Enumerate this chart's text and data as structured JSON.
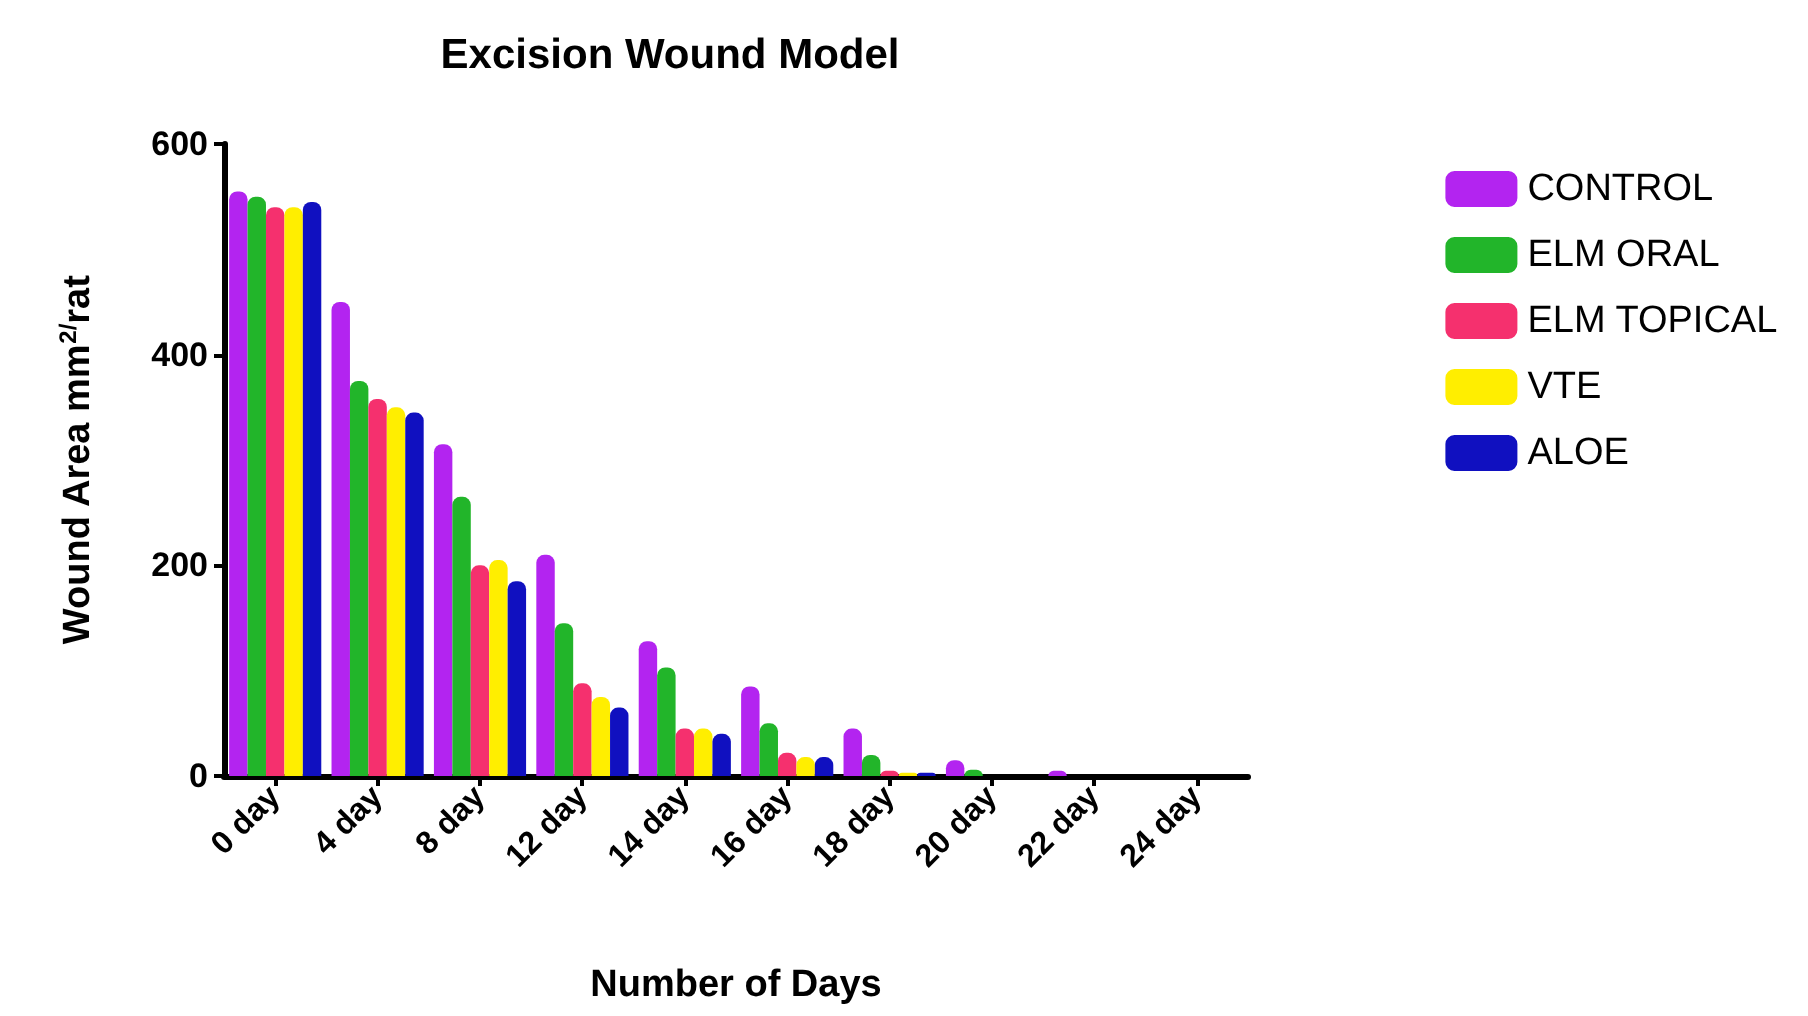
{
  "chart_data": {
    "type": "bar",
    "title": "Excision Wound Model",
    "xlabel": "Number of Days",
    "ylabel": "Wound Area mm$^{2/}$rat",
    "categories": [
      "0 day",
      "4 day",
      "8 day",
      "12 day",
      "14 day",
      "16 day",
      "18 day",
      "20 day",
      "22 day",
      "24 day"
    ],
    "series": [
      {
        "name": "CONTROL",
        "color": "#b324f0",
        "values": [
          555,
          450,
          315,
          210,
          128,
          85,
          45,
          15,
          5,
          0
        ]
      },
      {
        "name": "ELM ORAL",
        "color": "#22b52a",
        "values": [
          550,
          375,
          265,
          145,
          103,
          50,
          20,
          6,
          0,
          0
        ]
      },
      {
        "name": "ELM TOPICAL",
        "color": "#f5306e",
        "values": [
          540,
          358,
          200,
          88,
          45,
          22,
          5,
          0,
          0,
          0
        ]
      },
      {
        "name": "VTE",
        "color": "#ffee00",
        "values": [
          540,
          350,
          205,
          75,
          45,
          18,
          3,
          0,
          0,
          0
        ]
      },
      {
        "name": "ALOE",
        "color": "#1010c0",
        "values": [
          545,
          345,
          185,
          65,
          40,
          18,
          3,
          0,
          0,
          0
        ]
      }
    ],
    "ylim": [
      0,
      600
    ],
    "yticks": [
      0,
      200,
      400,
      600
    ],
    "grid": false,
    "legend": "right"
  }
}
